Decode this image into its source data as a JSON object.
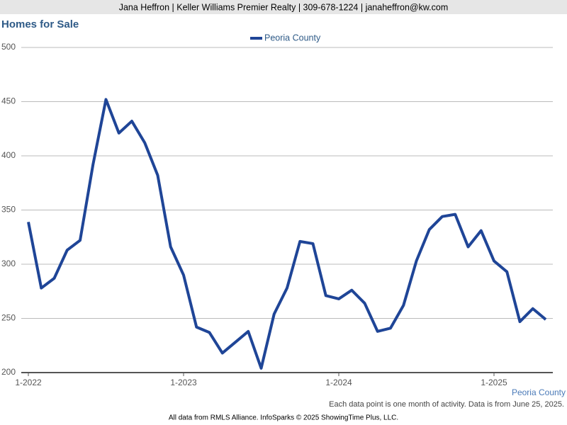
{
  "header": "Jana Heffron | Keller Williams Premier Realty | 309-678-1224 | janaheffron@kw.com",
  "chart_data": {
    "type": "line",
    "title": "Homes for Sale",
    "categories": [
      "1-2022",
      null,
      null,
      null,
      null,
      null,
      null,
      null,
      null,
      null,
      null,
      null,
      "1-2023",
      null,
      null,
      null,
      null,
      null,
      null,
      null,
      null,
      null,
      null,
      null,
      "1-2024",
      null,
      null,
      null,
      null,
      null,
      null,
      null,
      null,
      null,
      null,
      null,
      "1-2025",
      null,
      null,
      null,
      null
    ],
    "series": [
      {
        "name": "Peoria County",
        "color": "#1f4597",
        "values": [
          339,
          278,
          287,
          313,
          322,
          392,
          452,
          421,
          432,
          412,
          382,
          316,
          290,
          242,
          237,
          218,
          228,
          238,
          204,
          254,
          278,
          321,
          319,
          271,
          268,
          276,
          264,
          238,
          241,
          262,
          303,
          332,
          344,
          346,
          316,
          331,
          303,
          293,
          247,
          259,
          249
        ]
      }
    ],
    "ylim": [
      200,
      500
    ],
    "yticks": [
      200,
      250,
      300,
      350,
      400,
      450,
      500
    ],
    "grid": true,
    "series_label": "Peoria County",
    "note": "Each data point is one month of activity. Data is from June 25, 2025."
  },
  "footer": "All data from RMLS Alliance. InfoSparks © 2025 ShowingTime Plus, LLC."
}
